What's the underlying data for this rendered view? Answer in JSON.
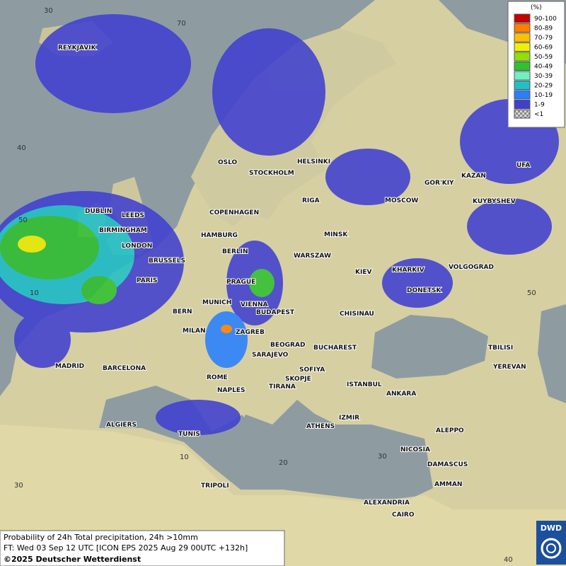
{
  "map": {
    "cities": [
      "REYKJAVIK",
      "OSLO",
      "STOCKHOLM",
      "HELSINKI",
      "DUBLIN",
      "LEEDS",
      "BIRMINGHAM",
      "LONDON",
      "COPENHAGEN",
      "RIGA",
      "MOSCOW",
      "GOR'KIY",
      "KAZAN",
      "UFA",
      "KUYBYSHEV",
      "HAMBURG",
      "BERLIN",
      "MINSK",
      "WARSZAW",
      "BRUSSELS",
      "PARIS",
      "PRAGUE",
      "KIEV",
      "KHARKIV",
      "VOLGOGRAD",
      "DONETSK",
      "MUNICH",
      "VIENNA",
      "BERN",
      "BUDAPEST",
      "CHISINAU",
      "MILAN",
      "ZAGREB",
      "BEOGRAD",
      "BUCHAREST",
      "TBILISI",
      "YEREVAN",
      "MADRID",
      "BARCELONA",
      "SARAJEVO",
      "SOFIYA",
      "SKOPJE",
      "ROME",
      "NAPLES",
      "TIRANA",
      "ISTANBUL",
      "ANKARA",
      "ALGIERS",
      "ATHENS",
      "IZMIR",
      "ALEPPO",
      "TUNIS",
      "NICOSIA",
      "DAMASCUS",
      "AMMAN",
      "TRIPOLI",
      "ALEXANDRIA",
      "CAIRO"
    ],
    "grid_labels": [
      "30",
      "70",
      "40",
      "50",
      "10",
      "10",
      "20",
      "30",
      "30",
      "50",
      "40"
    ]
  },
  "legend": {
    "title": "(%)",
    "items": [
      {
        "label": "90-100",
        "color": "#c80000"
      },
      {
        "label": "80-89",
        "color": "#ff8000"
      },
      {
        "label": "70-79",
        "color": "#ffc000"
      },
      {
        "label": "60-69",
        "color": "#f0f000"
      },
      {
        "label": "50-59",
        "color": "#90e000"
      },
      {
        "label": "40-49",
        "color": "#30c030"
      },
      {
        "label": "30-39",
        "color": "#70f0c0"
      },
      {
        "label": "20-29",
        "color": "#20c0c8"
      },
      {
        "label": "10-19",
        "color": "#2880ff"
      },
      {
        "label": "1-9",
        "color": "#4040d0"
      },
      {
        "label": "<1",
        "color": "#a0a0a0"
      }
    ]
  },
  "footer": {
    "line1": "Probability of 24h Total precipitation, 24h >10mm",
    "line2": "FT: Wed 03 Sep 12 UTC [ICON EPS 2025 Aug 29 00UTC +132h]",
    "line3": "©2025 Deutscher Wetterdienst"
  },
  "logo": "DWD"
}
